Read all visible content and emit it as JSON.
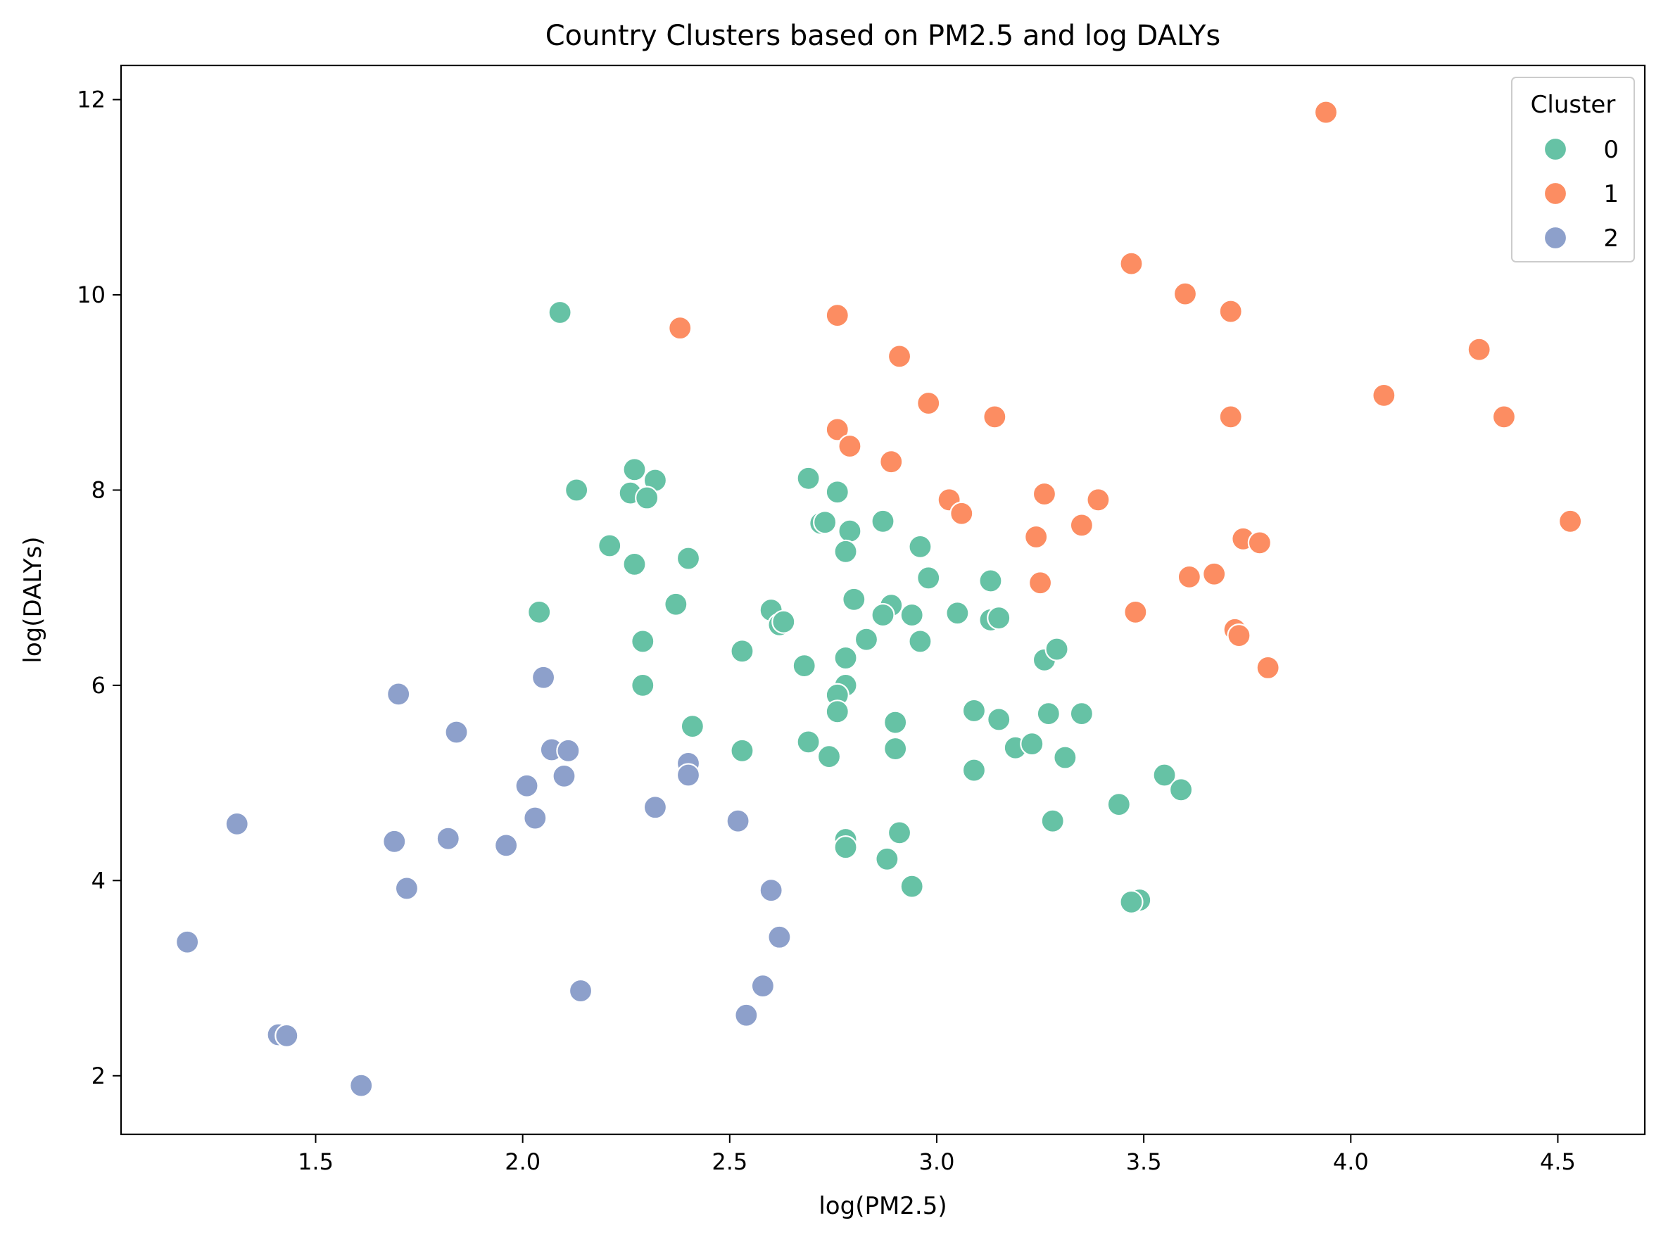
{
  "chart_data": {
    "type": "scatter",
    "title": "Country Clusters based on PM2.5 and log DALYs",
    "xlabel": "log(PM2.5)",
    "ylabel": "log(DALYs)",
    "xlim": [
      1.03,
      4.71
    ],
    "ylim": [
      1.4,
      12.35
    ],
    "xticks": [
      1.5,
      2.0,
      2.5,
      3.0,
      3.5,
      4.0,
      4.5
    ],
    "xtick_labels": [
      "1.5",
      "2.0",
      "2.5",
      "3.0",
      "3.5",
      "4.0",
      "4.5"
    ],
    "yticks": [
      2,
      4,
      6,
      8,
      10,
      12
    ],
    "ytick_labels": [
      "2",
      "4",
      "6",
      "8",
      "10",
      "12"
    ],
    "grid": false,
    "legend": {
      "title": "Cluster",
      "placement": "top-right"
    },
    "series": [
      {
        "name": "0",
        "color": "#66c2a5",
        "points": [
          [
            2.09,
            9.82
          ],
          [
            2.27,
            8.21
          ],
          [
            2.32,
            8.1
          ],
          [
            2.26,
            7.97
          ],
          [
            2.3,
            7.92
          ],
          [
            2.13,
            8.0
          ],
          [
            2.21,
            7.43
          ],
          [
            2.27,
            7.24
          ],
          [
            2.4,
            7.3
          ],
          [
            2.37,
            6.83
          ],
          [
            2.04,
            6.75
          ],
          [
            2.29,
            6.45
          ],
          [
            2.29,
            6.0
          ],
          [
            2.41,
            5.58
          ],
          [
            2.53,
            6.35
          ],
          [
            2.53,
            5.33
          ],
          [
            2.6,
            6.77
          ],
          [
            2.62,
            6.62
          ],
          [
            2.63,
            6.65
          ],
          [
            2.68,
            6.2
          ],
          [
            2.69,
            8.12
          ],
          [
            2.76,
            7.98
          ],
          [
            2.72,
            7.66
          ],
          [
            2.73,
            7.67
          ],
          [
            2.79,
            7.58
          ],
          [
            2.78,
            7.37
          ],
          [
            2.87,
            7.68
          ],
          [
            2.96,
            7.42
          ],
          [
            2.98,
            7.1
          ],
          [
            2.8,
            6.88
          ],
          [
            2.89,
            6.82
          ],
          [
            2.87,
            6.72
          ],
          [
            2.94,
            6.72
          ],
          [
            2.83,
            6.47
          ],
          [
            2.96,
            6.45
          ],
          [
            2.78,
            6.28
          ],
          [
            2.78,
            6.0
          ],
          [
            2.76,
            5.9
          ],
          [
            2.76,
            5.73
          ],
          [
            2.69,
            5.42
          ],
          [
            2.74,
            5.27
          ],
          [
            2.9,
            5.62
          ],
          [
            2.9,
            5.35
          ],
          [
            2.78,
            4.42
          ],
          [
            2.78,
            4.34
          ],
          [
            2.91,
            4.49
          ],
          [
            2.88,
            4.22
          ],
          [
            2.94,
            3.94
          ],
          [
            3.05,
            6.74
          ],
          [
            3.13,
            7.07
          ],
          [
            3.13,
            6.67
          ],
          [
            3.15,
            6.69
          ],
          [
            3.09,
            5.74
          ],
          [
            3.15,
            5.65
          ],
          [
            3.09,
            5.13
          ],
          [
            3.19,
            5.36
          ],
          [
            3.23,
            5.4
          ],
          [
            3.26,
            6.26
          ],
          [
            3.29,
            6.37
          ],
          [
            3.27,
            5.71
          ],
          [
            3.35,
            5.71
          ],
          [
            3.31,
            5.26
          ],
          [
            3.28,
            4.61
          ],
          [
            3.44,
            4.78
          ],
          [
            3.49,
            3.8
          ],
          [
            3.47,
            3.78
          ],
          [
            3.55,
            5.08
          ],
          [
            3.59,
            4.93
          ]
        ]
      },
      {
        "name": "1",
        "color": "#fc8d62",
        "points": [
          [
            2.38,
            9.66
          ],
          [
            2.76,
            9.79
          ],
          [
            2.91,
            9.37
          ],
          [
            2.98,
            8.89
          ],
          [
            2.76,
            8.62
          ],
          [
            2.79,
            8.45
          ],
          [
            2.89,
            8.29
          ],
          [
            3.03,
            7.9
          ],
          [
            3.06,
            7.76
          ],
          [
            3.14,
            8.75
          ],
          [
            3.26,
            7.96
          ],
          [
            3.39,
            7.9
          ],
          [
            3.24,
            7.52
          ],
          [
            3.35,
            7.64
          ],
          [
            3.25,
            7.05
          ],
          [
            3.47,
            10.32
          ],
          [
            3.6,
            10.01
          ],
          [
            3.71,
            9.83
          ],
          [
            3.71,
            8.75
          ],
          [
            3.61,
            7.11
          ],
          [
            3.67,
            7.14
          ],
          [
            3.48,
            6.75
          ],
          [
            3.72,
            6.57
          ],
          [
            3.73,
            6.51
          ],
          [
            3.74,
            7.5
          ],
          [
            3.78,
            7.46
          ],
          [
            3.8,
            6.18
          ],
          [
            3.94,
            11.87
          ],
          [
            4.08,
            8.97
          ],
          [
            4.31,
            9.44
          ],
          [
            4.37,
            8.75
          ],
          [
            4.53,
            7.68
          ]
        ]
      },
      {
        "name": "2",
        "color": "#8da0cb",
        "points": [
          [
            1.19,
            3.37
          ],
          [
            1.31,
            4.58
          ],
          [
            1.41,
            2.42
          ],
          [
            1.43,
            2.41
          ],
          [
            1.61,
            1.9
          ],
          [
            1.69,
            4.4
          ],
          [
            1.7,
            5.91
          ],
          [
            1.72,
            3.92
          ],
          [
            1.82,
            4.43
          ],
          [
            1.84,
            5.52
          ],
          [
            1.96,
            4.36
          ],
          [
            2.01,
            4.97
          ],
          [
            2.03,
            4.64
          ],
          [
            2.05,
            6.08
          ],
          [
            2.07,
            5.34
          ],
          [
            2.1,
            5.07
          ],
          [
            2.11,
            5.33
          ],
          [
            2.14,
            2.87
          ],
          [
            2.32,
            4.75
          ],
          [
            2.4,
            5.2
          ],
          [
            2.4,
            5.08
          ],
          [
            2.52,
            4.61
          ],
          [
            2.54,
            2.62
          ],
          [
            2.58,
            2.92
          ],
          [
            2.6,
            3.9
          ],
          [
            2.62,
            3.42
          ]
        ]
      }
    ]
  }
}
